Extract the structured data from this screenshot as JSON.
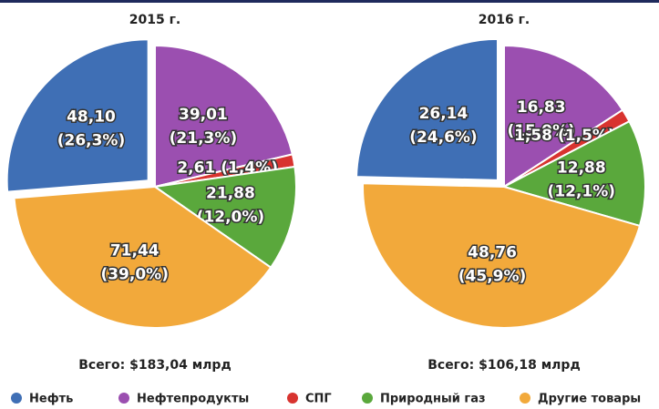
{
  "chart_data": [
    {
      "type": "pie",
      "title": "2015 г.",
      "total_label": "Всего: $183,04 млрд",
      "categories": [
        "Нефть",
        "Нефтепродукты",
        "СПГ",
        "Природный газ",
        "Другие товары"
      ],
      "colors": [
        "#3f6fb5",
        "#9b4fb0",
        "#d8332f",
        "#5aa83c",
        "#f2a93b"
      ],
      "values": [
        48.1,
        39.01,
        2.61,
        21.88,
        71.44
      ],
      "value_labels": [
        "48,10",
        "39,01",
        "2,61",
        "21,88",
        "71,44"
      ],
      "percents": [
        26.3,
        21.3,
        1.4,
        12.0,
        39.0
      ],
      "percent_labels": [
        "(26,3%)",
        "(21,3%)",
        "(1,4%)",
        "(12,0%)",
        "(39,0%)"
      ]
    },
    {
      "type": "pie",
      "title": "2016 г.",
      "total_label": "Всего: $106,18 млрд",
      "categories": [
        "Нефть",
        "Нефтепродукты",
        "СПГ",
        "Природный газ",
        "Другие товары"
      ],
      "colors": [
        "#3f6fb5",
        "#9b4fb0",
        "#d8332f",
        "#5aa83c",
        "#f2a93b"
      ],
      "values": [
        26.14,
        16.83,
        1.58,
        12.88,
        48.76
      ],
      "value_labels": [
        "26,14",
        "16,83",
        "1,58",
        "12,88",
        "48,76"
      ],
      "percents": [
        24.6,
        15.9,
        1.5,
        12.1,
        45.9
      ],
      "percent_labels": [
        "(24,6%)",
        "(15,9%)",
        "(1,5%)",
        "(12,1%)",
        "(45,9%)"
      ]
    }
  ]
}
